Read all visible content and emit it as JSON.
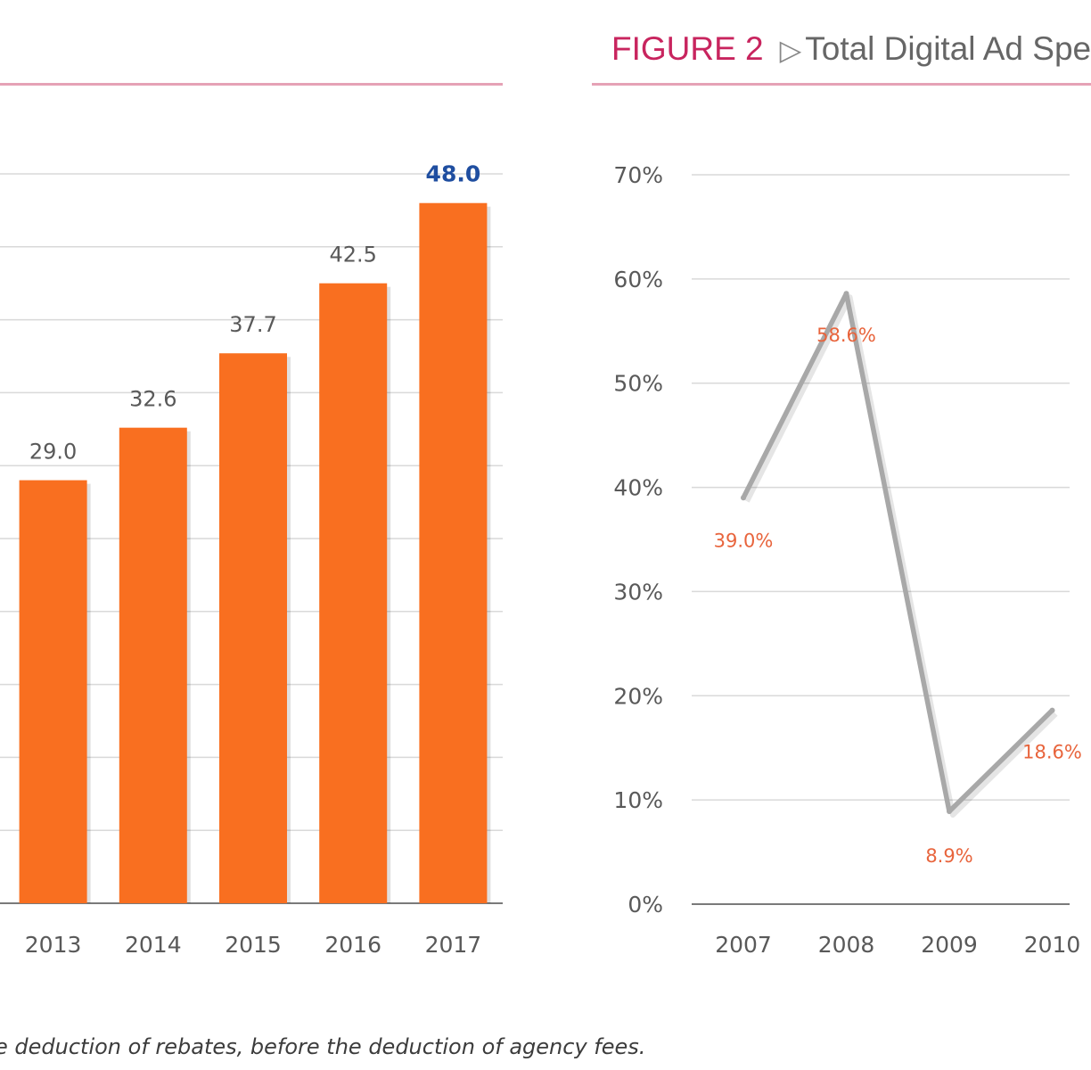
{
  "figure2": {
    "label": "FIGURE 2",
    "arrow_icon": "triangle-right-outline-icon",
    "title": "Total Digital Ad Spe"
  },
  "footnote": "e deduction of rebates, before the deduction of agency fees.",
  "colors": {
    "bar": "#f96f20",
    "highlight_label": "#1f4ea0",
    "line": "#a8a8a8",
    "line_label": "#e8643c",
    "rule": "#e5a2b6",
    "figure_label": "#c8245e"
  },
  "chart_data": [
    {
      "type": "bar",
      "categories": [
        "2013",
        "2014",
        "2015",
        "2016",
        "2017"
      ],
      "values": [
        29.0,
        32.6,
        37.7,
        42.5,
        48.0
      ],
      "labels": [
        "29.0",
        "32.6",
        "37.7",
        "42.5",
        "48.0"
      ],
      "highlight_index": 4,
      "ylim": [
        0,
        50
      ],
      "grid": true,
      "xlabel": "",
      "ylabel": ""
    },
    {
      "type": "line",
      "x": [
        "2007",
        "2008",
        "2009",
        "2010"
      ],
      "values": [
        39.0,
        58.6,
        8.9,
        18.6
      ],
      "labels": [
        "39.0%",
        "58.6%",
        "8.9%",
        "18.6%"
      ],
      "yticks": [
        "0%",
        "10%",
        "20%",
        "30%",
        "40%",
        "50%",
        "60%",
        "70%"
      ],
      "ylim": [
        0,
        70
      ],
      "grid": true,
      "xlabel": "",
      "ylabel": ""
    }
  ]
}
